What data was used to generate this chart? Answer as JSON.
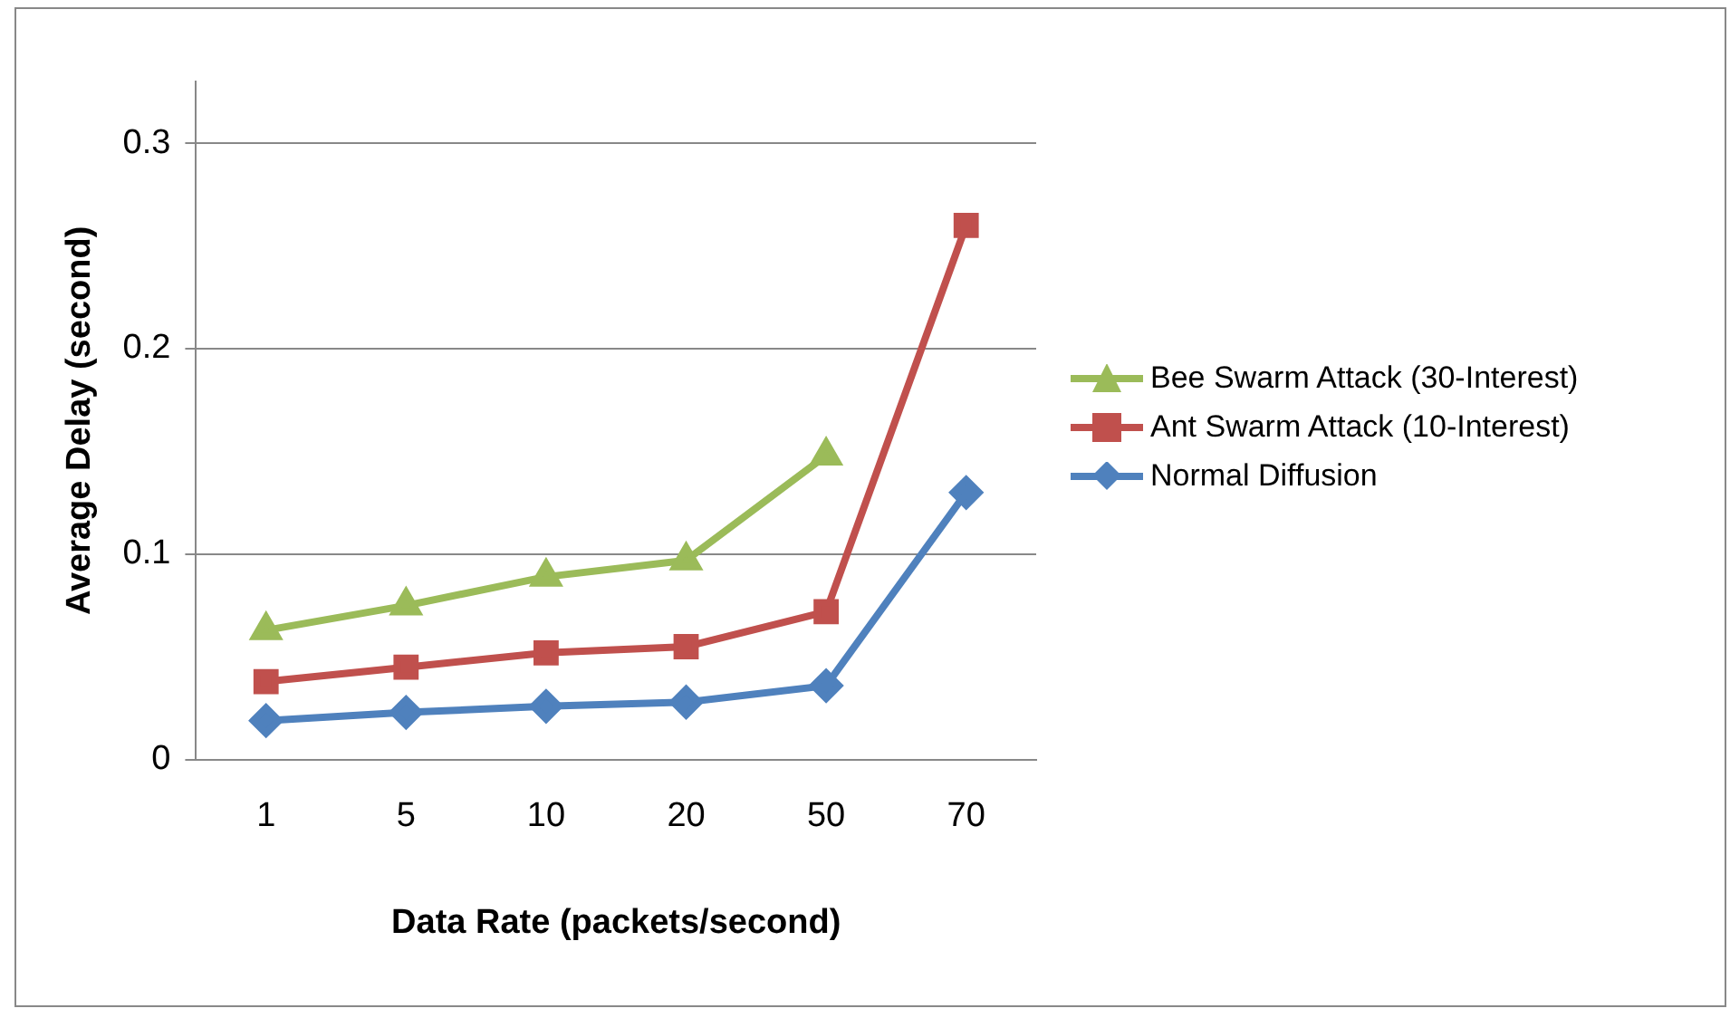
{
  "chart_data": {
    "type": "line",
    "xlabel": "Data Rate (packets/second)",
    "ylabel": "Average Delay (second)",
    "categories": [
      "1",
      "5",
      "10",
      "20",
      "50",
      "70"
    ],
    "series": [
      {
        "name": "Bee Swarm Attack (30-Interest)",
        "color": "#9bbb59",
        "marker": "triangle",
        "values": [
          0.063,
          0.075,
          0.089,
          0.097,
          0.148,
          null
        ]
      },
      {
        "name": "Ant Swarm Attack (10-Interest)",
        "color": "#c0504d",
        "marker": "square",
        "values": [
          0.038,
          0.045,
          0.052,
          0.055,
          0.072,
          0.26
        ]
      },
      {
        "name": "Normal Diffusion",
        "color": "#4f81bd",
        "marker": "diamond",
        "values": [
          0.019,
          0.023,
          0.026,
          0.028,
          0.036,
          0.13
        ]
      }
    ],
    "ylim": [
      0,
      0.33
    ],
    "yticks": [
      0,
      0.1,
      0.2,
      0.3
    ],
    "grid": "y",
    "legend": "right",
    "line_style": "solid"
  }
}
